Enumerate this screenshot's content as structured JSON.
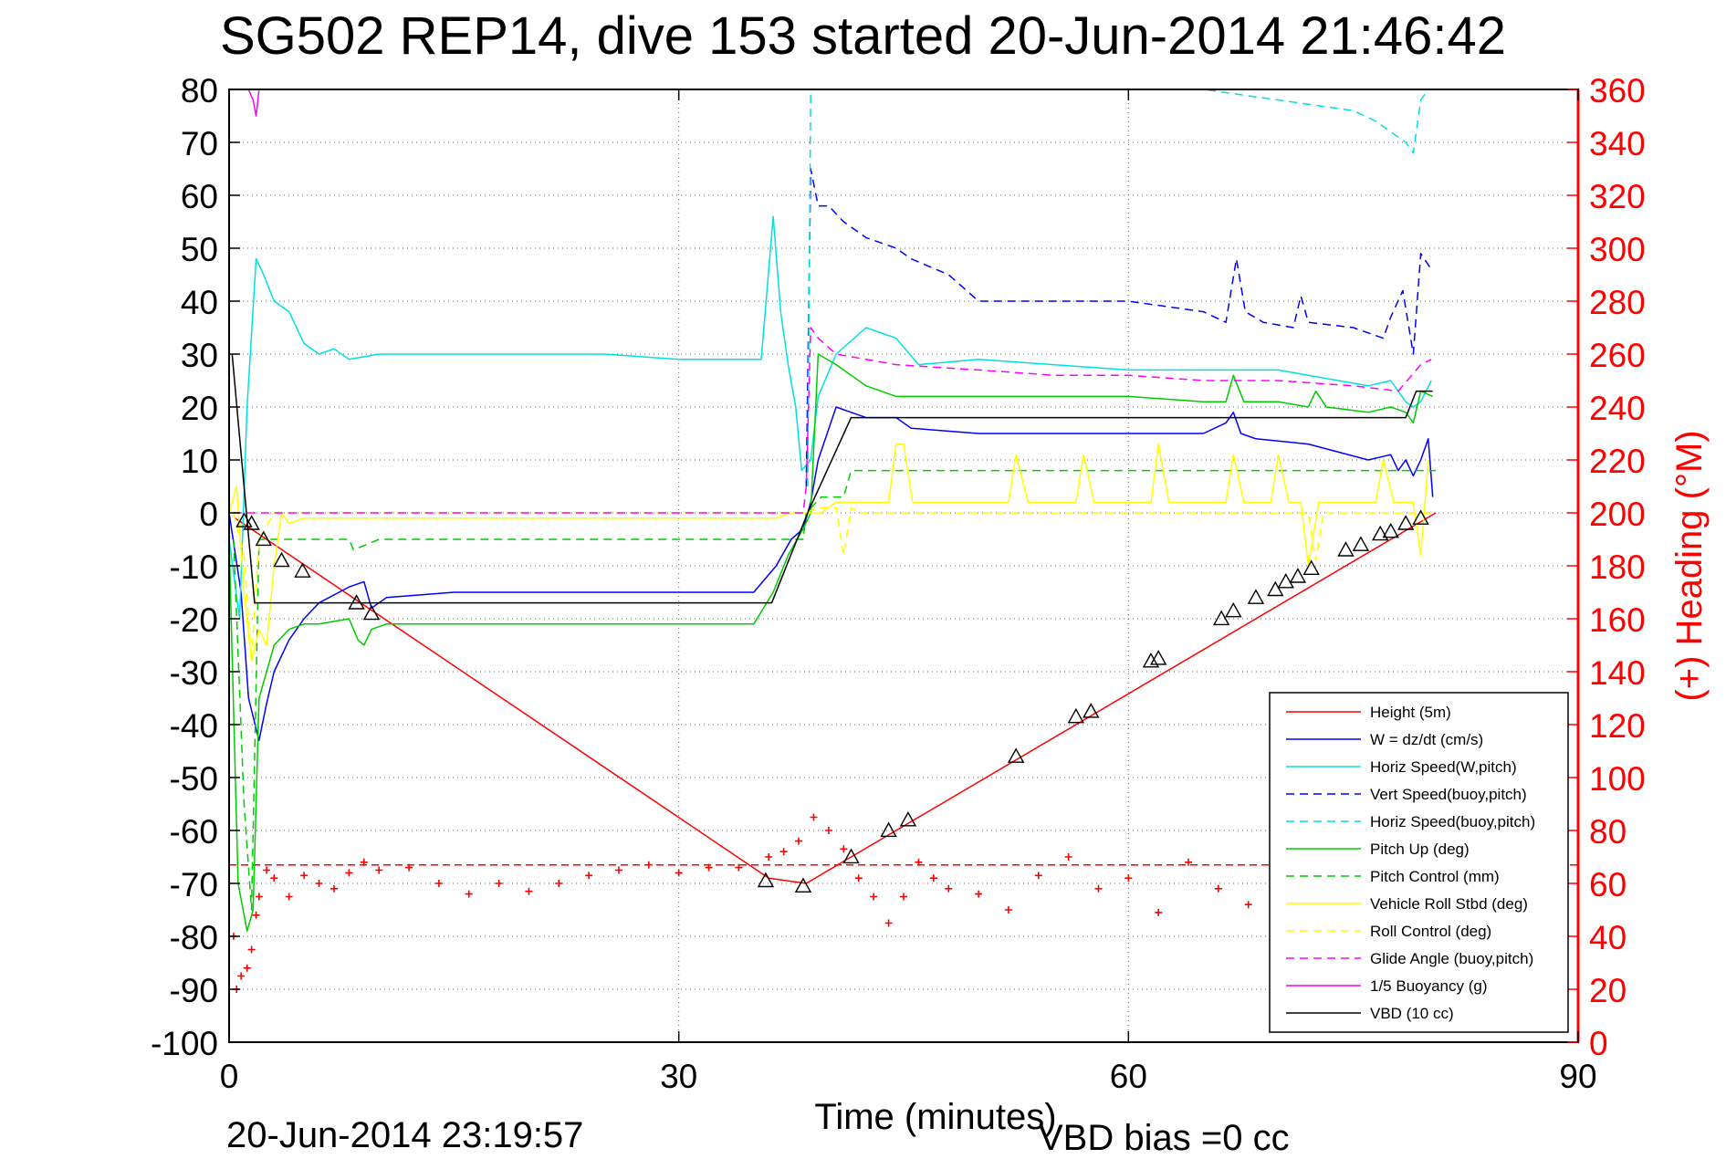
{
  "window": {
    "title": "SG502 REP14, dive 153 started 20-Jun-2014 21:46:42"
  },
  "footer": {
    "timestamp": "20-Jun-2014 23:19:57",
    "vbd_bias": "VBD bias =0 cc"
  },
  "chart_data": {
    "type": "line",
    "title": "SG502 REP14, dive 153 started 20-Jun-2014 21:46:42",
    "xlabel": "Time (minutes)",
    "ylabel": "",
    "y2label": "(+) Heading (°M)",
    "xlim": [
      0,
      90
    ],
    "ylim": [
      -100,
      80
    ],
    "y2lim": [
      0,
      360
    ],
    "xticks": [
      0,
      30,
      60,
      90
    ],
    "yticks": [
      80,
      70,
      60,
      50,
      40,
      30,
      20,
      10,
      0,
      -10,
      -20,
      -30,
      -40,
      -50,
      -60,
      -70,
      -80,
      -90,
      -100
    ],
    "y2ticks": [
      360,
      340,
      320,
      300,
      280,
      260,
      240,
      220,
      200,
      180,
      160,
      140,
      120,
      100,
      80,
      60,
      40,
      20,
      0
    ],
    "grid": true,
    "legend_position": "lower-right",
    "colors": {
      "right_axis": "#ff0000",
      "axes": "#000000"
    },
    "series": [
      {
        "name": "Height (5m)",
        "color": "#ff0000",
        "style": "solid",
        "x": [
          0.4,
          36.0,
          38.5,
          41.5,
          80.5
        ],
        "y": [
          -1,
          -69,
          -70,
          -65,
          0
        ]
      },
      {
        "name": "W = dz/dt (cm/s)",
        "color": "#0000ff",
        "style": "solid",
        "x": [
          0,
          0.8,
          1.3,
          2.0,
          2.5,
          3.0,
          4.0,
          5.0,
          6.0,
          8.0,
          9.0,
          9.5,
          10.5,
          15,
          20,
          25,
          30,
          35,
          36.5,
          37.5,
          38.3,
          38.8,
          39.3,
          40.5,
          41.5,
          42.5,
          44.5,
          45.5,
          50,
          55,
          60,
          65,
          66.5,
          67.0,
          67.5,
          68.5,
          72,
          76,
          77.5,
          78.0,
          78.5,
          79.0,
          79.5,
          80.0,
          80.3
        ],
        "y": [
          0,
          -15,
          -35,
          -43,
          -36,
          -30,
          -24,
          -20,
          -17,
          -14,
          -13,
          -18,
          -16,
          -15,
          -15,
          -15,
          -15,
          -15,
          -10,
          -5,
          -3,
          2,
          10,
          20,
          19,
          18,
          18,
          16,
          15,
          15,
          15,
          15,
          17,
          19,
          15,
          14,
          13,
          10,
          11,
          8,
          10,
          7,
          10,
          14,
          3
        ]
      },
      {
        "name": "Horiz Speed(W,pitch)",
        "color": "#00e0e0",
        "style": "solid",
        "x": [
          0,
          0.7,
          1.2,
          1.8,
          2.3,
          3.0,
          4.0,
          5.0,
          6.0,
          7.0,
          8.0,
          10,
          15,
          20,
          25,
          30,
          33,
          35.5,
          36.3,
          36.8,
          37.3,
          37.8,
          38.2,
          38.8,
          39.3,
          40.5,
          42.5,
          44.5,
          46,
          50,
          55,
          60,
          65,
          70,
          72,
          76,
          77.5,
          78.5,
          79.0,
          79.5,
          80.2
        ],
        "y": [
          -5,
          -20,
          20,
          48,
          45,
          40,
          38,
          32,
          30,
          31,
          29,
          30,
          30,
          30,
          30,
          29,
          29,
          29,
          56,
          38,
          28,
          20,
          8,
          10,
          22,
          30,
          35,
          33,
          28,
          29,
          28,
          27,
          27,
          27,
          26,
          24,
          25,
          21,
          20,
          21,
          25
        ]
      },
      {
        "name": "Vert Speed(buoy,pitch)",
        "color": "#0000ff",
        "style": "dashed",
        "x": [
          38.5,
          38.8,
          39.3,
          40.0,
          41.0,
          42.5,
          44.5,
          45.5,
          48,
          50,
          55,
          60,
          65,
          66.5,
          67.2,
          67.8,
          69,
          71,
          71.5,
          72,
          75,
          77,
          77.5,
          78.3,
          79.0,
          79.5,
          80.2
        ],
        "y": [
          5,
          65,
          58,
          58,
          55,
          52,
          50,
          48,
          45,
          40,
          40,
          40,
          38,
          36,
          48,
          38,
          36,
          35,
          41,
          36,
          35,
          33,
          37,
          42,
          30,
          49,
          46
        ]
      },
      {
        "name": "Horiz Speed(buoy,pitch)",
        "color": "#00e0e0",
        "style": "dashed",
        "x": [
          38.6,
          38.8,
          39.0,
          65,
          70,
          75,
          76.5,
          77.5,
          78.5,
          79.0,
          79.5,
          80.0
        ],
        "y": [
          5,
          80,
          80,
          80,
          78,
          76,
          74,
          72,
          70,
          68,
          78,
          80
        ]
      },
      {
        "name": "Pitch Up (deg)",
        "color": "#00cc00",
        "style": "solid",
        "x": [
          0,
          0.6,
          1.2,
          1.6,
          2.0,
          2.5,
          3.0,
          4.0,
          5.0,
          6.0,
          8.0,
          8.6,
          9.0,
          9.5,
          10.5,
          15,
          20,
          25,
          30,
          35,
          36.3,
          37.3,
          38.3,
          38.8,
          39.3,
          40.5,
          42.5,
          44.5,
          46,
          50,
          55,
          60,
          65,
          66.5,
          67.0,
          67.7,
          70,
          72,
          72.5,
          73.2,
          76,
          77.5,
          78.5,
          79.0,
          79.5,
          80.3
        ],
        "y": [
          -5,
          -70,
          -79,
          -75,
          -35,
          -30,
          -25,
          -22,
          -21,
          -21,
          -20,
          -24,
          -25,
          -22,
          -21,
          -21,
          -21,
          -21,
          -21,
          -21,
          -15,
          -8,
          -3,
          0,
          30,
          28,
          24,
          22,
          22,
          22,
          22,
          22,
          21,
          21,
          26,
          21,
          21,
          20,
          23,
          20,
          19,
          20,
          19,
          17,
          23,
          22
        ]
      },
      {
        "name": "Pitch Control (mm)",
        "color": "#00cc00",
        "style": "dashed",
        "x": [
          0.3,
          1.0,
          1.5,
          2.0,
          8.0,
          8.3,
          10.0,
          38.3,
          38.5,
          39.5,
          41.0,
          41.5,
          80.5
        ],
        "y": [
          -5,
          -55,
          -75,
          -5,
          -5,
          -7,
          -5,
          -5,
          0,
          3,
          3,
          8,
          8
        ]
      },
      {
        "name": "Vehicle Roll Stbd (deg)",
        "color": "#ffff00",
        "style": "solid",
        "x": [
          0,
          0.5,
          1.0,
          1.5,
          2.0,
          2.5,
          3.0,
          3.5,
          4.0,
          5.0,
          10,
          20,
          30,
          36.5,
          37.5,
          38.5,
          39.5,
          40.5,
          42.5,
          44.0,
          44.5,
          45.0,
          45.6,
          47,
          52,
          52.5,
          53.3,
          55,
          56.5,
          57.0,
          57.7,
          60,
          61.5,
          62.0,
          62.7,
          66,
          66.5,
          67.0,
          67.7,
          69.5,
          70.0,
          70.7,
          71.5,
          72.0,
          72.7,
          76.5,
          77.0,
          77.7,
          79.0,
          79.5,
          80.0
        ],
        "y": [
          0,
          5,
          -15,
          -28,
          -22,
          -25,
          -10,
          0,
          -2,
          -1,
          -1,
          -1,
          -1,
          -1,
          0,
          0,
          0,
          2,
          2,
          2,
          13,
          13,
          2,
          2,
          2,
          11,
          2,
          2,
          2,
          11,
          2,
          2,
          2,
          13,
          2,
          2,
          2,
          11,
          2,
          2,
          11,
          2,
          2,
          -10,
          2,
          2,
          10,
          2,
          2,
          -8,
          10
        ]
      },
      {
        "name": "Roll Control (deg)",
        "color": "#ffff00",
        "style": "dashed",
        "x": [
          0.3,
          1.0,
          1.5,
          2.0,
          3.0,
          36,
          38.3,
          39.5,
          40.5,
          41.0,
          41.5,
          42,
          72,
          72.5,
          73,
          80.5
        ],
        "y": [
          0,
          -8,
          -28,
          -5,
          0,
          0,
          0,
          1,
          1,
          -8,
          1,
          0,
          0,
          -9,
          0,
          0
        ]
      },
      {
        "name": "Glide Angle (buoy,pitch)",
        "color": "#ff00ff",
        "style": "dashed",
        "x": [
          0.3,
          38.3,
          38.5,
          38.8,
          39.3,
          40.5,
          42.5,
          44.5,
          50,
          55,
          60,
          65,
          70,
          75,
          78,
          79.5,
          80.2
        ],
        "y": [
          0,
          0,
          5,
          35,
          33,
          30,
          29,
          28,
          27,
          26,
          26,
          25,
          25,
          24,
          23,
          28,
          29
        ]
      },
      {
        "name": "1/5 Buoyancy (g)",
        "color": "#ff00ff",
        "style": "solid",
        "x": [
          1.3,
          1.6,
          1.8,
          2.0
        ],
        "y": [
          80,
          78,
          75,
          80
        ]
      },
      {
        "name": "VBD (10 cc)",
        "color": "#000000",
        "style": "solid",
        "x": [
          0.2,
          1.7,
          2.0,
          36.2,
          38.6,
          41.5,
          78.5,
          79.2,
          80.3
        ],
        "y": [
          30,
          -17,
          -17,
          -17,
          0,
          18,
          18,
          23,
          23
        ]
      }
    ],
    "heading": {
      "name": "(+) Heading (°M)",
      "color": "#ff0000",
      "axis": "right",
      "mean": 67,
      "x": [
        0.3,
        0.5,
        0.8,
        1.2,
        1.5,
        1.8,
        2.0,
        2.5,
        3.0,
        4.0,
        5.0,
        6.0,
        7.0,
        8.0,
        9.0,
        10,
        12,
        14,
        16,
        18,
        20,
        22,
        24,
        26,
        28,
        30,
        32,
        34,
        36,
        37,
        38,
        39,
        40,
        41,
        42,
        43,
        44,
        45,
        46,
        47,
        48,
        50,
        52,
        54,
        56,
        58,
        60,
        62,
        64,
        66,
        68,
        70
      ],
      "y": [
        40,
        20,
        25,
        28,
        35,
        48,
        55,
        65,
        62,
        55,
        63,
        60,
        58,
        64,
        68,
        65,
        66,
        60,
        56,
        60,
        57,
        60,
        63,
        65,
        67,
        64,
        66,
        66,
        70,
        72,
        76,
        85,
        80,
        73,
        62,
        55,
        45,
        55,
        68,
        62,
        58,
        56,
        50,
        63,
        70,
        58,
        62,
        49,
        68,
        58,
        52,
        60
      ]
    },
    "markers": {
      "shape": "triangle",
      "color": "#000000",
      "x": [
        1.0,
        1.5,
        2.3,
        3.5,
        4.9,
        8.5,
        9.5,
        35.8,
        38.3,
        41.5,
        44.0,
        45.3,
        52.5,
        56.5,
        57.5,
        61.5,
        62.0,
        66.2,
        67.0,
        68.5,
        69.8,
        70.5,
        71.3,
        72.2,
        74.5,
        75.5,
        76.8,
        77.5,
        78.5,
        79.5
      ],
      "y": [
        -1.5,
        -2,
        -5,
        -9,
        -11,
        -17,
        -19,
        -69.5,
        -70.5,
        -65,
        -60,
        -58,
        -46,
        -38.5,
        -37.5,
        -28,
        -27.5,
        -20,
        -18.5,
        -16,
        -14.5,
        -13,
        -12,
        -10.5,
        -7,
        -6,
        -4,
        -3.5,
        -2,
        -1
      ]
    }
  }
}
